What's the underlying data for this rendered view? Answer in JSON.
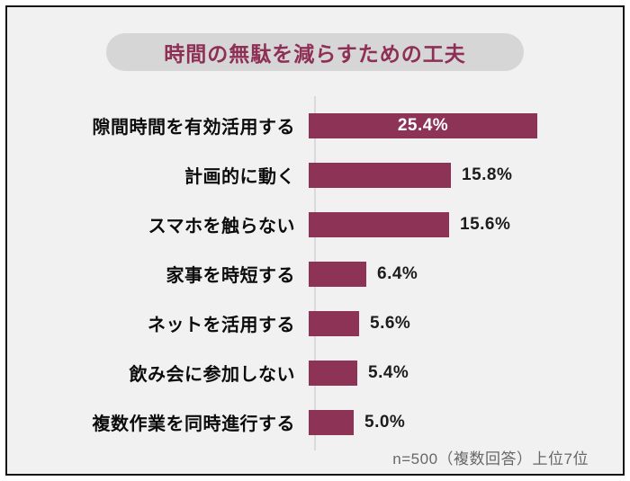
{
  "title": "時間の無駄を減らすための工夫",
  "footnote": "n=500（複数回答）上位7位",
  "colors": {
    "bar": "#8d3356",
    "title_text": "#8e2f55",
    "pill_background": "#d7d6d7",
    "page_background": "#f2f1f2",
    "axis_line": "#dbdadb",
    "value_inside": "#ffffff",
    "value_outside": "#1c1c1c"
  },
  "chart_data": {
    "type": "bar",
    "orientation": "horizontal",
    "title": "時間の無駄を減らすための工夫",
    "categories": [
      "隙間時間を有効活用する",
      "計画的に動く",
      "スマホを触らない",
      "家事を時短する",
      "ネットを活用する",
      "飲み会に参加しない",
      "複数作業を同時進行する"
    ],
    "values": [
      25.4,
      15.8,
      15.6,
      6.4,
      5.6,
      5.4,
      5.0
    ],
    "value_suffix": "%",
    "xlabel": "",
    "ylabel": "",
    "xlim": [
      0,
      26
    ],
    "grid": false,
    "legend": "none",
    "note": "n=500（複数回答）上位7位"
  }
}
